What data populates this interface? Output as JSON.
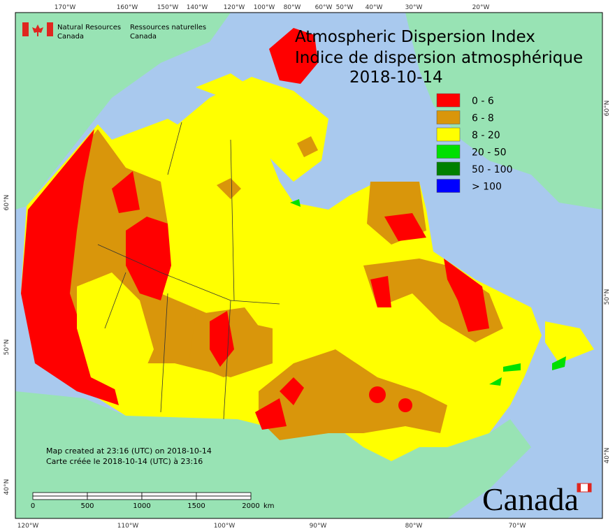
{
  "agency": {
    "en_1": "Natural Resources",
    "en_2": "Canada",
    "fr_1": "Ressources naturelles",
    "fr_2": "Canada"
  },
  "title": {
    "en": "Atmospheric Dispersion Index",
    "fr": "Indice de dispersion atmosphérique",
    "date": "2018-10-14"
  },
  "legend": [
    {
      "label": "0 - 6",
      "color": "#ff0000"
    },
    {
      "label": "6 - 8",
      "color": "#d9960b"
    },
    {
      "label": "8 - 20",
      "color": "#ffff00"
    },
    {
      "label": "20 - 50",
      "color": "#00e000"
    },
    {
      "label": "50 - 100",
      "color": "#008000"
    },
    {
      "label": "> 100",
      "color": "#0000ff"
    }
  ],
  "top_labels": [
    "170°W",
    "160°W",
    "150°W",
    "140°W",
    "120°W",
    "100°W",
    "80°W",
    "60°W",
    "50°W",
    "40°W",
    "30°W",
    "20°W"
  ],
  "bottom_labels": [
    "120°W",
    "110°W",
    "100°W",
    "90°W",
    "80°W",
    "70°W"
  ],
  "left_labels": [
    "60°N",
    "50°N",
    "40°N"
  ],
  "right_labels": [
    "60°N",
    "50°N",
    "40°N"
  ],
  "credits": [
    "Map created at 23:16 (UTC) on 2018-10-14",
    "Carte créée le 2018-10-14 (UTC) à 23:16"
  ],
  "scale_bar": {
    "labels": [
      "0",
      "500",
      "1000",
      "1500",
      "2000"
    ],
    "unit": "km"
  },
  "wordmark": "Canada"
}
